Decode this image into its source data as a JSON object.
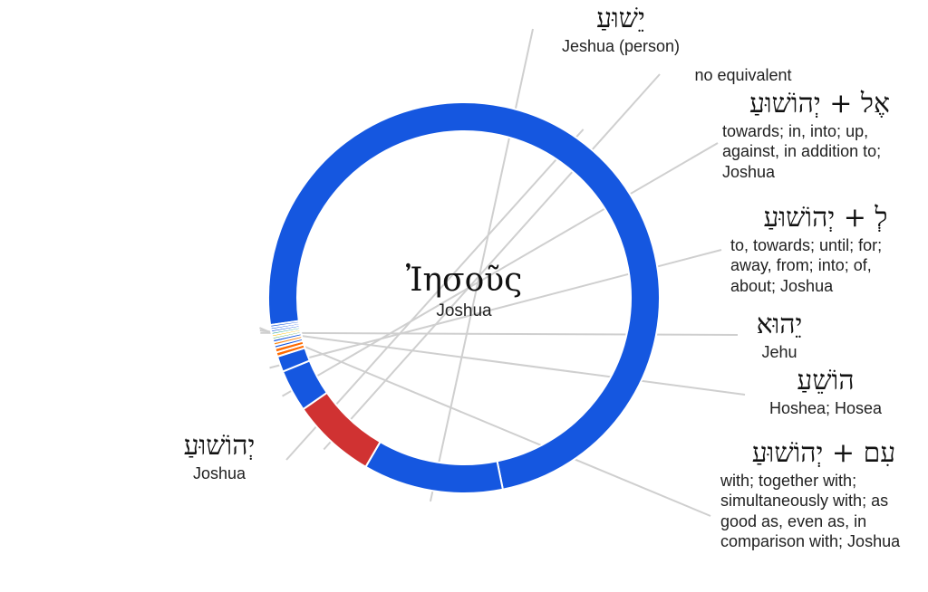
{
  "center": {
    "word": "Ἰησοῦς",
    "gloss": "Joshua"
  },
  "chart_data": {
    "type": "pie",
    "donut": true,
    "slices": [
      {
        "key": "yehoshua",
        "label": "יְהוֹשׁוּעַ",
        "gloss": "Joshua",
        "value": 74.3,
        "color": "#1557e0"
      },
      {
        "key": "yeshua",
        "label": "יֵשׁוּעַ",
        "gloss": "Jeshua (person)",
        "value": 11.6,
        "color": "#1557e0"
      },
      {
        "key": "none",
        "label": "",
        "gloss": "no equivalent",
        "value": 7.0,
        "color": "#d03232"
      },
      {
        "key": "el_yehoshua",
        "label": "אֶל + יְהוֹשׁוּעַ",
        "gloss": "towards; in, into; up, against, in addition to; Joshua",
        "value": 3.5,
        "color": "#1557e0"
      },
      {
        "key": "le_yehoshua",
        "label": "לְ + יְהוֹשׁוּעַ",
        "gloss": "to, towards; until; for; away, from; into; of, about; Joshua",
        "value": 1.3,
        "color": "#1557e0"
      },
      {
        "key": "s6",
        "label": "",
        "gloss": "",
        "value": 0.35,
        "color": "#ff6a00"
      },
      {
        "key": "s7",
        "label": "",
        "gloss": "",
        "value": 0.35,
        "color": "#ff6a00"
      },
      {
        "key": "s8",
        "label": "",
        "gloss": "",
        "value": 0.25,
        "color": "#1557e0"
      },
      {
        "key": "s9",
        "label": "",
        "gloss": "",
        "value": 0.25,
        "color": "#ff8c1a"
      },
      {
        "key": "s10",
        "label": "",
        "gloss": "",
        "value": 0.25,
        "color": "#1557e0"
      },
      {
        "key": "s11",
        "label": "",
        "gloss": "",
        "value": 0.2,
        "color": "#4caf50"
      },
      {
        "key": "s12",
        "label": "",
        "gloss": "",
        "value": 0.2,
        "color": "#ffc107"
      },
      {
        "key": "s13",
        "label": "",
        "gloss": "",
        "value": 0.2,
        "color": "#26a69a"
      },
      {
        "key": "yehu",
        "label": "יֵהוּא",
        "gloss": "Jehu",
        "value": 0.2,
        "color": "#1557e0"
      },
      {
        "key": "hoshea",
        "label": "הוֹשֵׁעַ",
        "gloss": "Hoshea; Hosea",
        "value": 0.2,
        "color": "#1557e0"
      },
      {
        "key": "im_yehoshua",
        "label": "עִם + יְהוֹשׁוּעַ",
        "gloss": "with; together with; simultaneously with; as good as, even as, in comparison with; Joshua",
        "value": 0.2,
        "color": "#1557e0"
      }
    ]
  }
}
